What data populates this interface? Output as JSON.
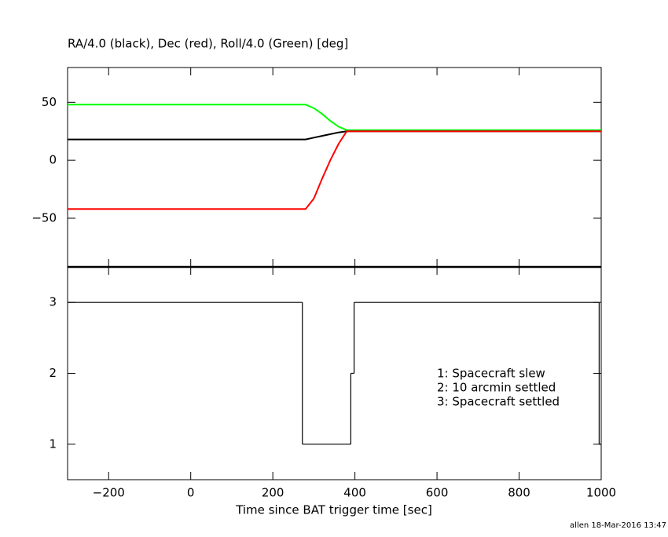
{
  "chart_data": [
    {
      "type": "line",
      "title": "RA/4.0 (black), Dec (red), Roll/4.0 (Green) [deg]",
      "x": [
        -300,
        280,
        300,
        320,
        340,
        360,
        380,
        400,
        1000
      ],
      "series": [
        {
          "color": "#00ff00",
          "values": [
            48,
            48,
            45,
            40,
            34,
            29,
            26,
            26,
            26
          ]
        },
        {
          "color": "#000000",
          "values": [
            18,
            18,
            19.5,
            21,
            22.5,
            24,
            25,
            25,
            25
          ]
        },
        {
          "color": "#ff0000",
          "values": [
            -42,
            -42,
            -33,
            -16,
            0,
            14,
            25,
            25,
            25
          ]
        }
      ],
      "xlim": [
        -300,
        1000
      ],
      "ylim": [
        -92,
        80
      ],
      "yticks": [
        {
          "value": -50,
          "label": "−50"
        },
        0,
        50
      ]
    },
    {
      "type": "step",
      "x_label": "Time since BAT trigger time [sec]",
      "x": [
        -300,
        272,
        390,
        398,
        995
      ],
      "values": [
        3,
        1,
        2,
        3,
        1
      ],
      "color": "#000000",
      "xlim": [
        -300,
        1000
      ],
      "xticks": [
        {
          "value": -200,
          "label": "−200"
        },
        0,
        200,
        400,
        600,
        800,
        1000
      ],
      "ylim": [
        0.5,
        3.5
      ],
      "yticks": [
        1,
        2,
        3
      ],
      "annotations": [
        "1: Spacecraft slew",
        "2: 10 arcmin settled",
        "3: Spacecraft settled"
      ]
    }
  ],
  "footer": "allen 18-Mar-2016 13:47"
}
